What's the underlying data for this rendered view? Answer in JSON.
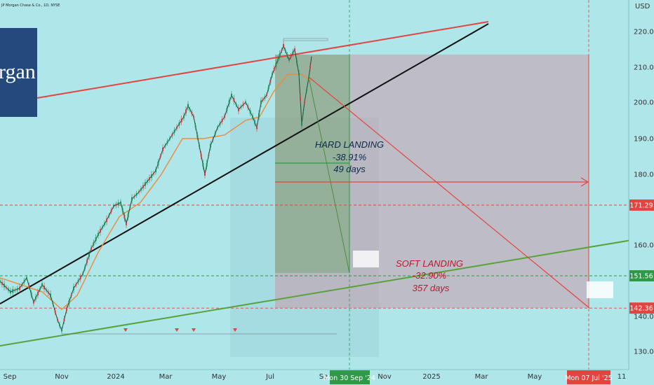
{
  "header": {
    "symbol_line": "JP Morgan Chase & Co., 1D, NYSE",
    "currency": "USD"
  },
  "logo": {
    "text": "rgan"
  },
  "chart_data": {
    "type": "candlestick",
    "ylim": [
      126,
      226
    ],
    "x_ticks": [
      {
        "label": "Sep",
        "x": 14
      },
      {
        "label": "Nov",
        "x": 88
      },
      {
        "label": "2024",
        "x": 165
      },
      {
        "label": "Mar",
        "x": 236
      },
      {
        "label": "May",
        "x": 312
      },
      {
        "label": "Jul",
        "x": 385
      },
      {
        "label": "Se",
        "x": 461
      },
      {
        "label": "Nov",
        "x": 548
      },
      {
        "label": "2025",
        "x": 615
      },
      {
        "label": "Mar",
        "x": 686
      },
      {
        "label": "May",
        "x": 762
      },
      {
        "label": "11",
        "x": 886
      }
    ],
    "y_ticks": [
      220,
      210,
      200,
      190,
      180,
      160,
      140,
      130
    ],
    "price_badges": [
      {
        "label": "171.29",
        "value": 171.29,
        "color": "#e5433f"
      },
      {
        "label": "151.56",
        "value": 151.56,
        "color": "#2e9a45"
      },
      {
        "label": "142.36",
        "value": 142.36,
        "color": "#e5433f"
      }
    ],
    "date_badges": [
      {
        "label": "Mon 30 Sep '24",
        "color": "#2e9a45"
      },
      {
        "label": "Mon 07 Jul '25",
        "color": "#e5433f"
      }
    ],
    "price_points": [
      {
        "x": 0,
        "y": 150
      },
      {
        "x": 15,
        "y": 147
      },
      {
        "x": 28,
        "y": 148
      },
      {
        "x": 38,
        "y": 151
      },
      {
        "x": 48,
        "y": 144
      },
      {
        "x": 60,
        "y": 149
      },
      {
        "x": 72,
        "y": 146
      },
      {
        "x": 82,
        "y": 139
      },
      {
        "x": 88,
        "y": 136
      },
      {
        "x": 95,
        "y": 142
      },
      {
        "x": 105,
        "y": 148
      },
      {
        "x": 118,
        "y": 152
      },
      {
        "x": 130,
        "y": 159
      },
      {
        "x": 140,
        "y": 163
      },
      {
        "x": 152,
        "y": 167
      },
      {
        "x": 162,
        "y": 171
      },
      {
        "x": 172,
        "y": 172
      },
      {
        "x": 180,
        "y": 166
      },
      {
        "x": 188,
        "y": 173
      },
      {
        "x": 198,
        "y": 175
      },
      {
        "x": 210,
        "y": 178
      },
      {
        "x": 222,
        "y": 181
      },
      {
        "x": 232,
        "y": 187
      },
      {
        "x": 242,
        "y": 190
      },
      {
        "x": 252,
        "y": 193
      },
      {
        "x": 262,
        "y": 196
      },
      {
        "x": 268,
        "y": 199
      },
      {
        "x": 276,
        "y": 196
      },
      {
        "x": 284,
        "y": 188
      },
      {
        "x": 292,
        "y": 180
      },
      {
        "x": 300,
        "y": 188
      },
      {
        "x": 310,
        "y": 193
      },
      {
        "x": 320,
        "y": 196
      },
      {
        "x": 330,
        "y": 202
      },
      {
        "x": 340,
        "y": 198
      },
      {
        "x": 350,
        "y": 200
      },
      {
        "x": 360,
        "y": 196
      },
      {
        "x": 366,
        "y": 193
      },
      {
        "x": 372,
        "y": 200
      },
      {
        "x": 380,
        "y": 202
      },
      {
        "x": 388,
        "y": 208
      },
      {
        "x": 396,
        "y": 212
      },
      {
        "x": 404,
        "y": 216
      },
      {
        "x": 412,
        "y": 212
      },
      {
        "x": 420,
        "y": 215
      },
      {
        "x": 426,
        "y": 208
      },
      {
        "x": 430,
        "y": 194
      },
      {
        "x": 434,
        "y": 200
      },
      {
        "x": 440,
        "y": 207
      },
      {
        "x": 444,
        "y": 213
      }
    ],
    "ma_points": [
      {
        "x": 0,
        "y": 151
      },
      {
        "x": 30,
        "y": 149
      },
      {
        "x": 60,
        "y": 147
      },
      {
        "x": 88,
        "y": 142
      },
      {
        "x": 110,
        "y": 146
      },
      {
        "x": 140,
        "y": 158
      },
      {
        "x": 170,
        "y": 168
      },
      {
        "x": 200,
        "y": 172
      },
      {
        "x": 230,
        "y": 180
      },
      {
        "x": 260,
        "y": 190
      },
      {
        "x": 290,
        "y": 190
      },
      {
        "x": 320,
        "y": 191
      },
      {
        "x": 350,
        "y": 195
      },
      {
        "x": 370,
        "y": 196
      },
      {
        "x": 390,
        "y": 203
      },
      {
        "x": 410,
        "y": 208
      },
      {
        "x": 430,
        "y": 208
      },
      {
        "x": 444,
        "y": 206
      }
    ],
    "annotations": [
      {
        "id": "hard",
        "lines": [
          "HARD LANDING",
          "-38.91%",
          "49 days"
        ],
        "color": "#0d2a4a"
      },
      {
        "id": "soft",
        "lines": [
          "SOFT LANDING",
          "-32.90%",
          "357 days"
        ],
        "color": "#b51d2b"
      }
    ]
  }
}
